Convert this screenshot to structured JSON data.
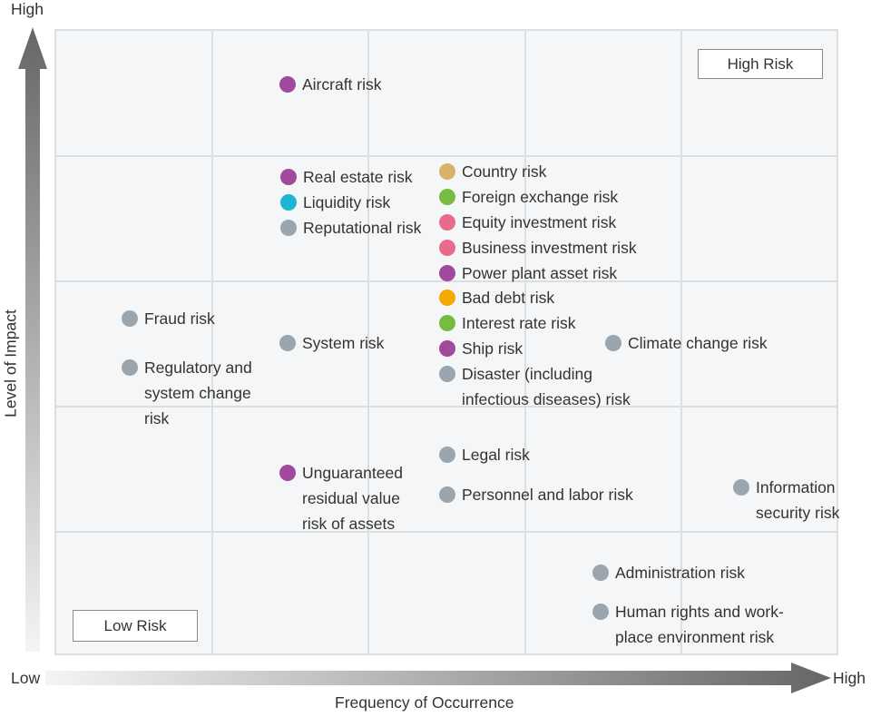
{
  "axes": {
    "y_high": "High",
    "y_title": "Level of Impact",
    "x_low": "Low",
    "x_high": "High",
    "x_title": "Frequency of Occurrence"
  },
  "boxes": {
    "high_risk": "High Risk",
    "low_risk": "Low Risk"
  },
  "colors": {
    "purple": "#a14a9b",
    "cyan": "#1bb6cf",
    "gray": "#9aa5ad",
    "tan": "#d6b26d",
    "green": "#77bb41",
    "pink": "#e96b8b",
    "orange": "#f5a800"
  },
  "risks": [
    {
      "label": "Aircraft risk",
      "color": "purple"
    },
    {
      "label": "Real estate risk",
      "color": "purple"
    },
    {
      "label": "Liquidity risk",
      "color": "cyan"
    },
    {
      "label": "Reputational risk",
      "color": "gray"
    },
    {
      "label": "Country risk",
      "color": "tan"
    },
    {
      "label": "Foreign exchange risk",
      "color": "green"
    },
    {
      "label": "Equity investment risk",
      "color": "pink"
    },
    {
      "label": "Business investment risk",
      "color": "pink"
    },
    {
      "label": "Power plant asset risk",
      "color": "purple"
    },
    {
      "label": "Bad debt risk",
      "color": "orange"
    },
    {
      "label": "Interest rate risk",
      "color": "green"
    },
    {
      "label": "Ship risk",
      "color": "purple"
    },
    {
      "label": "Disaster (including\ninfectious diseases) risk",
      "color": "gray"
    },
    {
      "label": "Fraud risk",
      "color": "gray"
    },
    {
      "label": "Regulatory and\nsystem change\nrisk",
      "color": "gray"
    },
    {
      "label": "System risk",
      "color": "gray"
    },
    {
      "label": "Climate change risk",
      "color": "gray"
    },
    {
      "label": "Legal risk",
      "color": "gray"
    },
    {
      "label": "Personnel and labor risk",
      "color": "gray"
    },
    {
      "label": "Unguaranteed\nresidual value\nrisk of assets",
      "color": "purple"
    },
    {
      "label": "Information\nsecurity risk",
      "color": "gray"
    },
    {
      "label": "Administration risk",
      "color": "gray"
    },
    {
      "label": "Human rights and work-\nplace environment risk",
      "color": "gray"
    }
  ]
}
